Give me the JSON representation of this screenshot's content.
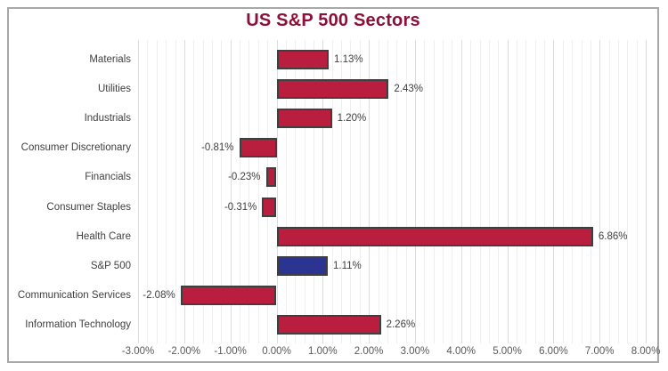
{
  "title": "US S&P 500 Sectors",
  "colors": {
    "bar": "#B91E3E",
    "highlight_bar": "#2B3591",
    "bar_border": "#3F3F3F",
    "title": "#8C1038",
    "grid_minor": "#EFEFEF",
    "grid_major": "#DCDCDC",
    "frame_border": "#A8A8A8",
    "label_text": "#404040",
    "tick_text": "#595959"
  },
  "chart_data": {
    "type": "bar",
    "orientation": "horizontal",
    "title": "US S&P 500 Sectors",
    "xlabel": "",
    "ylabel": "",
    "categories": [
      "Materials",
      "Utilities",
      "Industrials",
      "Consumer Discretionary",
      "Financials",
      "Consumer Staples",
      "Health Care",
      "S&P 500",
      "Communication Services",
      "Information Technology"
    ],
    "values": [
      1.13,
      2.43,
      1.2,
      -0.81,
      -0.23,
      -0.31,
      6.86,
      1.11,
      -2.08,
      2.26
    ],
    "value_labels": [
      "1.13%",
      "2.43%",
      "1.20%",
      "-0.81%",
      "-0.23%",
      "-0.31%",
      "6.86%",
      "1.11%",
      "-2.08%",
      "2.26%"
    ],
    "highlight_category": "S&P 500",
    "xlim": [
      -3,
      8
    ],
    "x_tick_step": 1,
    "x_tick_labels": [
      "-3.00%",
      "-2.00%",
      "-1.00%",
      "0.00%",
      "1.00%",
      "2.00%",
      "3.00%",
      "4.00%",
      "5.00%",
      "6.00%",
      "7.00%",
      "8.00%"
    ],
    "minor_grid_step": 0.2,
    "grid": "vertical-minor-and-major",
    "legend": "none"
  }
}
